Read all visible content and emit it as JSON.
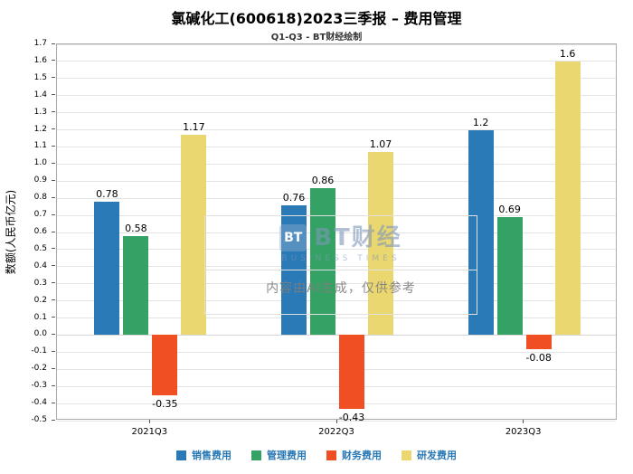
{
  "title": "氯碱化工(600618)2023三季报 – 费用管理",
  "subtitle": "Q1-Q3 - BT财经绘制",
  "watermark": {
    "brand_icon": "BT",
    "brand": "BT财经",
    "brand_sub": "BUSINESS TIMES",
    "disclaimer": "内容由AI生成，仅供参考"
  },
  "chart_data": {
    "type": "bar",
    "title": "氯碱化工(600618)2023三季报 – 费用管理",
    "subtitle": "Q1-Q3 - BT财经绘制",
    "categories": [
      "2021Q3",
      "2022Q3",
      "2023Q3"
    ],
    "series": [
      {
        "key": "selling-expense",
        "name": "销售费用",
        "color": "#2A7AB8",
        "values": [
          0.78,
          0.76,
          1.2
        ]
      },
      {
        "key": "admin-expense",
        "name": "管理费用",
        "color": "#35A265",
        "values": [
          0.58,
          0.86,
          0.69
        ]
      },
      {
        "key": "finance-expense",
        "name": "财务费用",
        "color": "#F04E23",
        "values": [
          -0.35,
          -0.43,
          -0.08
        ]
      },
      {
        "key": "rd-expense",
        "name": "研发费用",
        "color": "#EBD76F",
        "values": [
          1.17,
          1.07,
          1.6
        ]
      }
    ],
    "xlabel": "",
    "ylabel": "数额(人民币亿元)",
    "ylim": [
      -0.5,
      1.7
    ],
    "ytick_step": 0.1,
    "grid": true,
    "legend_position": "bottom",
    "legend_text_color": "#2878B5"
  }
}
